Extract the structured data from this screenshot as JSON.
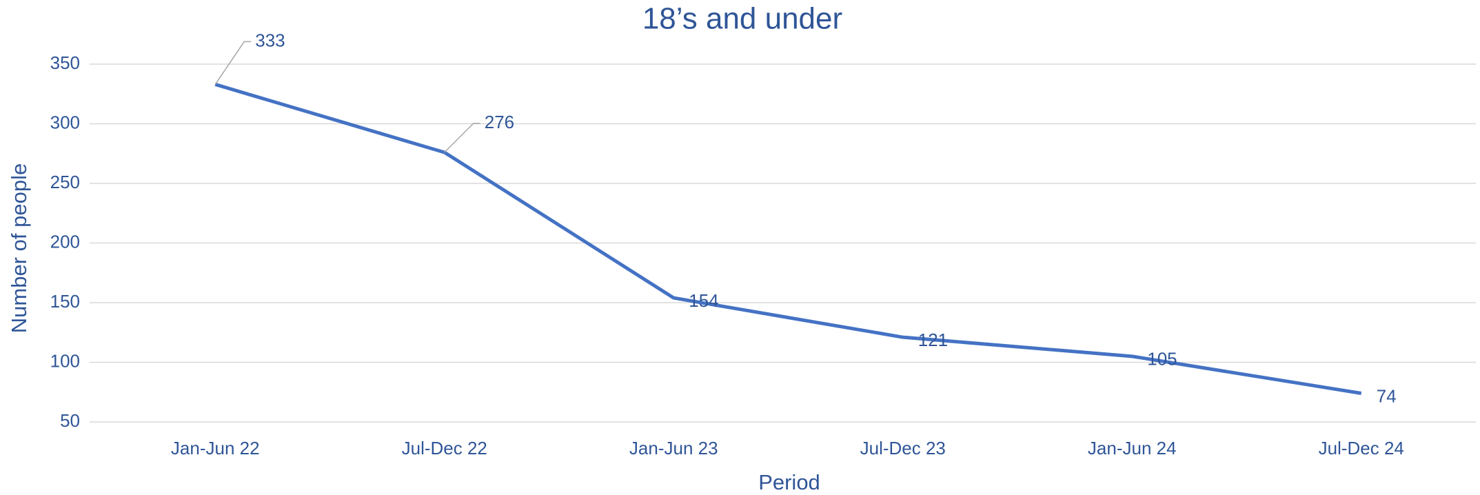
{
  "chart_data": {
    "type": "line",
    "title": "18’s and under",
    "categories": [
      "Jan-Jun 22",
      "Jul-Dec 22",
      "Jan-Jun 23",
      "Jul-Dec 23",
      "Jan-Jun 24",
      "Jul-Dec 24"
    ],
    "series": [
      {
        "name": "18’s and under",
        "color": "#4472c4",
        "values": [
          333,
          276,
          154,
          121,
          105,
          74
        ]
      }
    ],
    "ylim": [
      50,
      350
    ],
    "yticks": [
      50,
      100,
      150,
      200,
      250,
      300,
      350
    ],
    "xlabel": "Period",
    "ylabel": "Number of people",
    "grid": true
  }
}
